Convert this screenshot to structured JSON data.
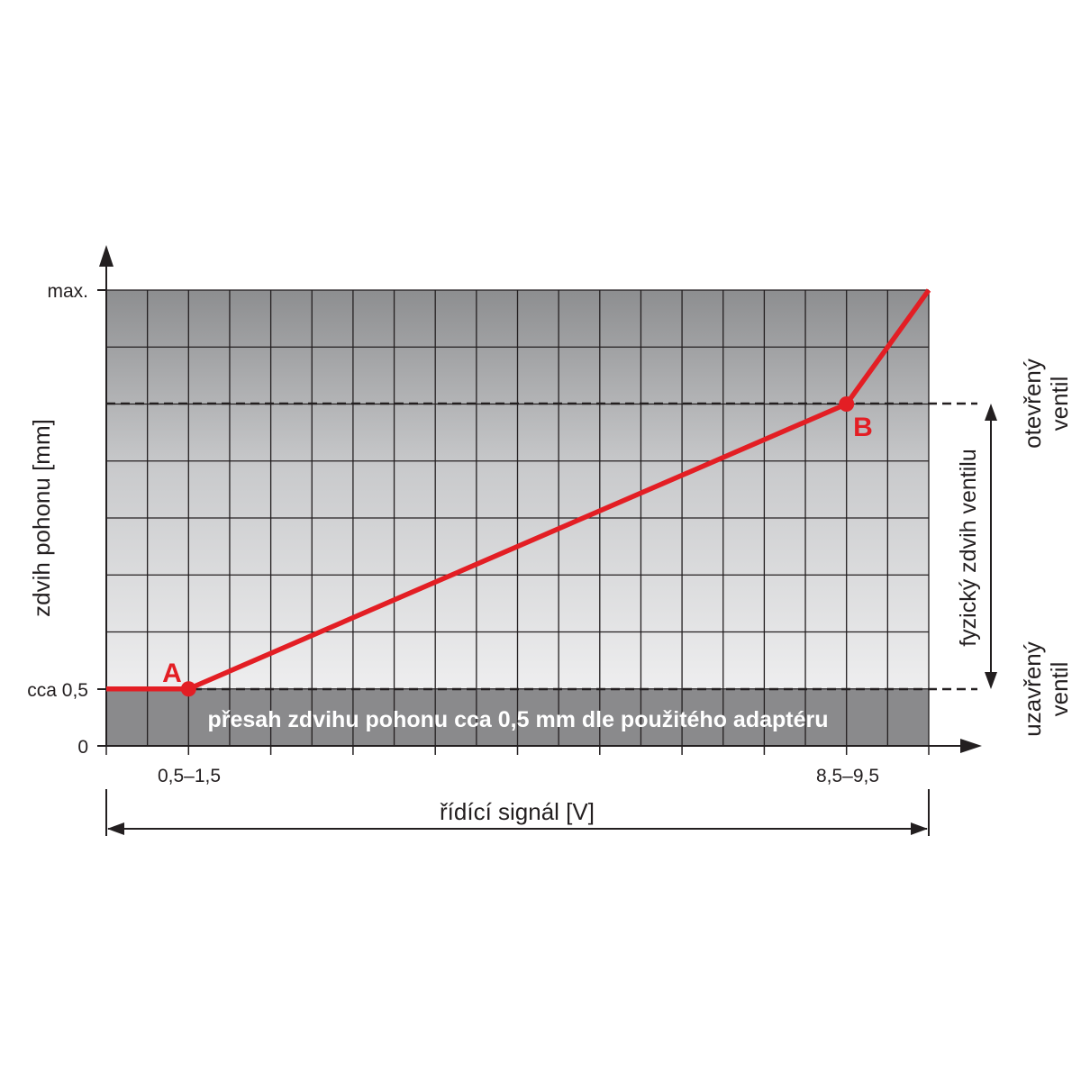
{
  "chart_data": {
    "type": "line",
    "xlabel": "řídící signál [V]",
    "ylabel": "zdvih pohonu [mm]",
    "x_ticks": [
      "0,5–1,5",
      "8,5–9,5"
    ],
    "y_ticks": [
      "max.",
      "cca 0,5",
      "0"
    ],
    "xlim": [
      0,
      10
    ],
    "ylim": [
      0,
      8
    ],
    "grid": true,
    "series": [
      {
        "color": "#e31e24",
        "x": [
          0,
          1,
          9,
          10
        ],
        "y": [
          1,
          1,
          6,
          8
        ]
      }
    ],
    "points": [
      {
        "label": "A",
        "x": 1,
        "y": 1
      },
      {
        "label": "B",
        "x": 9,
        "y": 6
      }
    ],
    "annotations": {
      "overlap_band": "přesah zdvihu pohonu cca 0,5 mm dle použitého adaptéru",
      "physical_stroke": "fyzický zdvih ventilu",
      "open_valve": [
        "otevřený",
        "ventil"
      ],
      "closed_valve": [
        "uzavřený",
        "ventil"
      ]
    },
    "colors": {
      "line": "#e31e24",
      "axis": "#231f20",
      "band": "#8a8a8c",
      "grid": "#231f20"
    }
  }
}
